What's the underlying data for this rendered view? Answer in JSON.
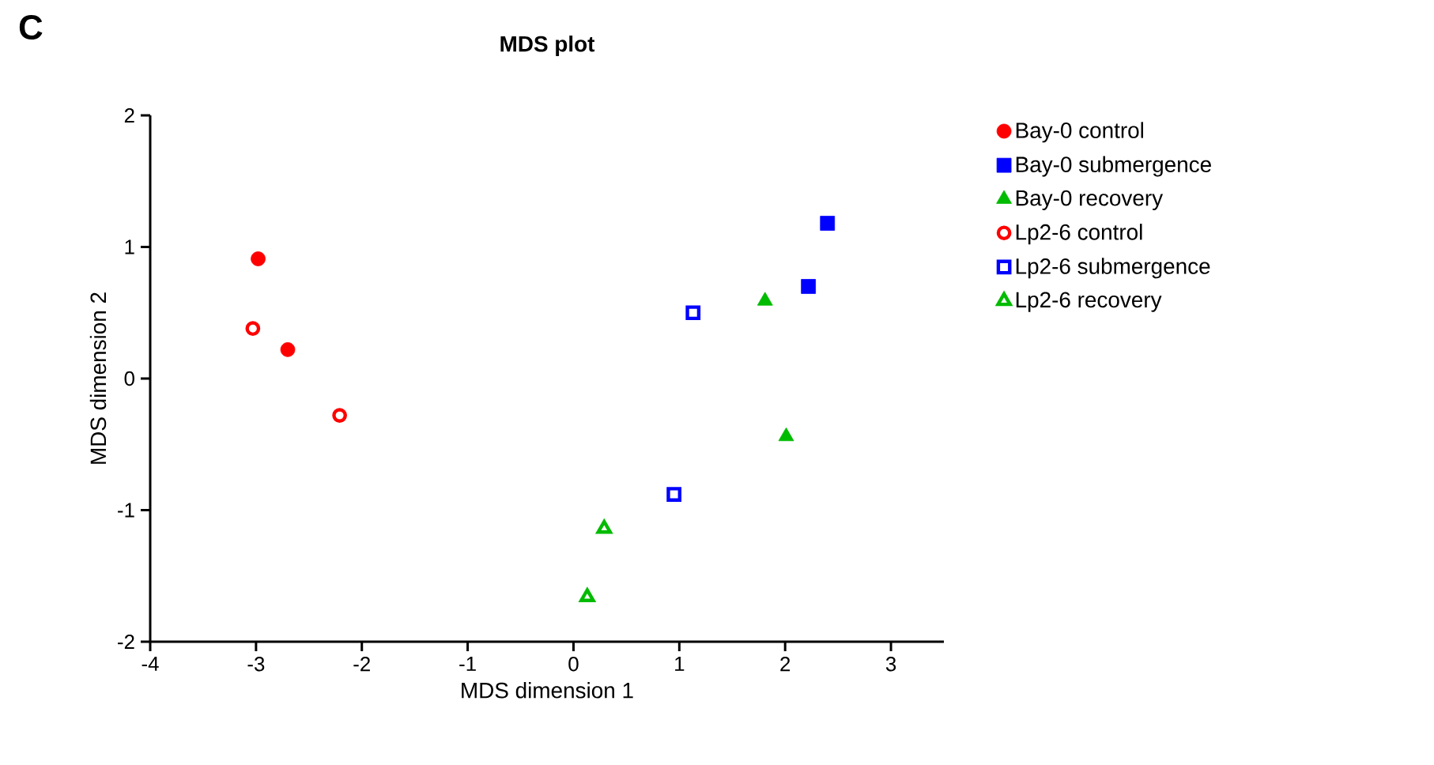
{
  "chart_data": {
    "type": "scatter",
    "title": "MDS plot",
    "xlabel": "MDS dimension 1",
    "ylabel": "MDS dimension 2",
    "annotations": [
      "C"
    ],
    "xlim": [
      -4,
      3.5
    ],
    "ylim": [
      -2,
      2
    ],
    "xticks": [
      -4,
      -3,
      -2,
      -1,
      0,
      1,
      2,
      3
    ],
    "yticks": [
      -2,
      -1,
      0,
      1,
      2
    ],
    "grid": false,
    "legend": "right",
    "series": [
      {
        "name": "Bay-0 control",
        "color": "#ff0000",
        "marker": "circle",
        "x": [
          -2.98,
          -2.7
        ],
        "values": [
          0.91,
          0.22
        ]
      },
      {
        "name": "Bay-0 submergence",
        "color": "#0000ff",
        "marker": "square",
        "x": [
          2.4,
          2.22
        ],
        "values": [
          1.18,
          0.7
        ]
      },
      {
        "name": "Bay-0 recovery",
        "color": "#00bb00",
        "marker": "triangle",
        "x": [
          1.81,
          2.01
        ],
        "values": [
          0.59,
          -0.44
        ]
      },
      {
        "name": "Lp2-6 control",
        "color": "#ff0000",
        "marker": "circle-open",
        "x": [
          -3.03,
          -2.21
        ],
        "values": [
          0.38,
          -0.28
        ]
      },
      {
        "name": "Lp2-6 submergence",
        "color": "#0000ff",
        "marker": "square-open",
        "x": [
          1.13,
          0.95
        ],
        "values": [
          0.5,
          -0.88
        ]
      },
      {
        "name": "Lp2-6 recovery",
        "color": "#00bb00",
        "marker": "triangle-open",
        "x": [
          0.29,
          0.13
        ],
        "values": [
          -1.14,
          -1.66
        ]
      }
    ]
  }
}
